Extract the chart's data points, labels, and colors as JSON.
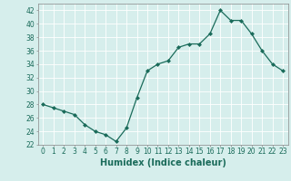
{
  "x": [
    0,
    1,
    2,
    3,
    4,
    5,
    6,
    7,
    8,
    9,
    10,
    11,
    12,
    13,
    14,
    15,
    16,
    17,
    18,
    19,
    20,
    21,
    22,
    23
  ],
  "y": [
    28,
    27.5,
    27,
    26.5,
    25,
    24,
    23.5,
    22.5,
    24.5,
    29,
    33,
    34,
    34.5,
    36.5,
    37,
    37,
    38.5,
    42,
    40.5,
    40.5,
    38.5,
    36,
    34,
    33
  ],
  "line_color": "#1a6b5a",
  "marker_color": "#1a6b5a",
  "bg_color": "#d6eeec",
  "grid_color": "#ffffff",
  "xlabel": "Humidex (Indice chaleur)",
  "ylim": [
    22,
    43
  ],
  "xlim": [
    -0.5,
    23.5
  ],
  "yticks": [
    22,
    24,
    26,
    28,
    30,
    32,
    34,
    36,
    38,
    40,
    42
  ],
  "xtick_labels": [
    "0",
    "1",
    "2",
    "3",
    "4",
    "5",
    "6",
    "7",
    "8",
    "9",
    "10",
    "11",
    "12",
    "13",
    "14",
    "15",
    "16",
    "17",
    "18",
    "19",
    "20",
    "21",
    "22",
    "23"
  ],
  "label_fontsize": 7,
  "tick_fontsize": 5.5
}
